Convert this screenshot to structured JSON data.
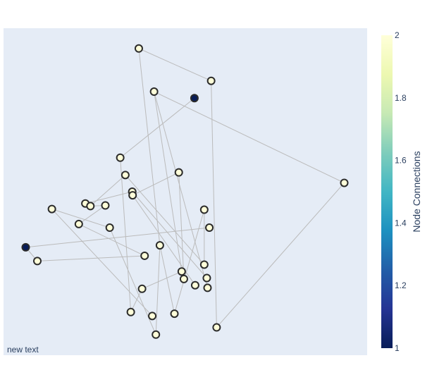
{
  "chart_data": {
    "type": "scatter",
    "title": "",
    "xlabel": "",
    "ylabel": "",
    "xlim": [
      0,
      1
    ],
    "ylim": [
      0,
      1
    ],
    "grid": false,
    "show_axes": false,
    "plot_bgcolor": "#E5ECF6",
    "edge_color": "#BBBBBB",
    "marker_line_color": "#2B2B2B",
    "annotation": "new text",
    "colorbar": {
      "title": "Node Connections",
      "colorscale": "YlGnBu (reversed)",
      "range": [
        1,
        2
      ],
      "tick_labels": [
        "1",
        "1.2",
        "1.4",
        "1.6",
        "1.8",
        "2"
      ],
      "tick_values": [
        1,
        1.2,
        1.4,
        1.6,
        1.8,
        2
      ],
      "stops": [
        "#081D58",
        "#253494",
        "#225EA8",
        "#1D91C0",
        "#41B6C4",
        "#7FCDBB",
        "#C7E9B4",
        "#EDF8B1",
        "#FFFFD9"
      ]
    },
    "nodes": [
      {
        "x": 0.372,
        "y": 0.938,
        "connections": 2
      },
      {
        "x": 0.571,
        "y": 0.839,
        "connections": 2
      },
      {
        "x": 0.414,
        "y": 0.806,
        "connections": 2
      },
      {
        "x": 0.525,
        "y": 0.786,
        "connections": 1
      },
      {
        "x": 0.321,
        "y": 0.604,
        "connections": 2
      },
      {
        "x": 0.482,
        "y": 0.559,
        "connections": 2
      },
      {
        "x": 0.335,
        "y": 0.551,
        "connections": 2
      },
      {
        "x": 0.937,
        "y": 0.527,
        "connections": 2
      },
      {
        "x": 0.354,
        "y": 0.5,
        "connections": 2
      },
      {
        "x": 0.355,
        "y": 0.489,
        "connections": 2
      },
      {
        "x": 0.225,
        "y": 0.464,
        "connections": 2
      },
      {
        "x": 0.239,
        "y": 0.456,
        "connections": 2
      },
      {
        "x": 0.28,
        "y": 0.458,
        "connections": 2
      },
      {
        "x": 0.133,
        "y": 0.447,
        "connections": 2
      },
      {
        "x": 0.552,
        "y": 0.445,
        "connections": 2
      },
      {
        "x": 0.207,
        "y": 0.401,
        "connections": 2
      },
      {
        "x": 0.292,
        "y": 0.39,
        "connections": 2
      },
      {
        "x": 0.566,
        "y": 0.39,
        "connections": 2
      },
      {
        "x": 0.43,
        "y": 0.336,
        "connections": 2
      },
      {
        "x": 0.061,
        "y": 0.33,
        "connections": 1
      },
      {
        "x": 0.388,
        "y": 0.304,
        "connections": 2
      },
      {
        "x": 0.093,
        "y": 0.288,
        "connections": 2
      },
      {
        "x": 0.552,
        "y": 0.277,
        "connections": 2
      },
      {
        "x": 0.49,
        "y": 0.256,
        "connections": 2
      },
      {
        "x": 0.559,
        "y": 0.236,
        "connections": 2
      },
      {
        "x": 0.496,
        "y": 0.233,
        "connections": 2
      },
      {
        "x": 0.527,
        "y": 0.214,
        "connections": 2
      },
      {
        "x": 0.561,
        "y": 0.206,
        "connections": 2
      },
      {
        "x": 0.381,
        "y": 0.203,
        "connections": 2
      },
      {
        "x": 0.35,
        "y": 0.132,
        "connections": 2
      },
      {
        "x": 0.47,
        "y": 0.127,
        "connections": 2
      },
      {
        "x": 0.409,
        "y": 0.12,
        "connections": 2
      },
      {
        "x": 0.586,
        "y": 0.085,
        "connections": 2
      },
      {
        "x": 0.419,
        "y": 0.063,
        "connections": 2
      }
    ],
    "edges": [
      [
        0,
        1
      ],
      [
        0,
        18
      ],
      [
        1,
        32
      ],
      [
        2,
        7
      ],
      [
        2,
        23
      ],
      [
        2,
        27
      ],
      [
        3,
        4
      ],
      [
        4,
        29
      ],
      [
        5,
        9
      ],
      [
        5,
        25
      ],
      [
        6,
        11
      ],
      [
        6,
        22
      ],
      [
        7,
        32
      ],
      [
        8,
        10
      ],
      [
        8,
        24
      ],
      [
        9,
        26
      ],
      [
        10,
        11
      ],
      [
        11,
        12
      ],
      [
        12,
        15
      ],
      [
        13,
        16
      ],
      [
        13,
        31
      ],
      [
        14,
        22
      ],
      [
        14,
        30
      ],
      [
        15,
        20
      ],
      [
        16,
        33
      ],
      [
        17,
        19
      ],
      [
        18,
        30
      ],
      [
        18,
        33
      ],
      [
        19,
        21
      ],
      [
        20,
        21
      ],
      [
        23,
        28
      ],
      [
        28,
        29
      ]
    ]
  }
}
